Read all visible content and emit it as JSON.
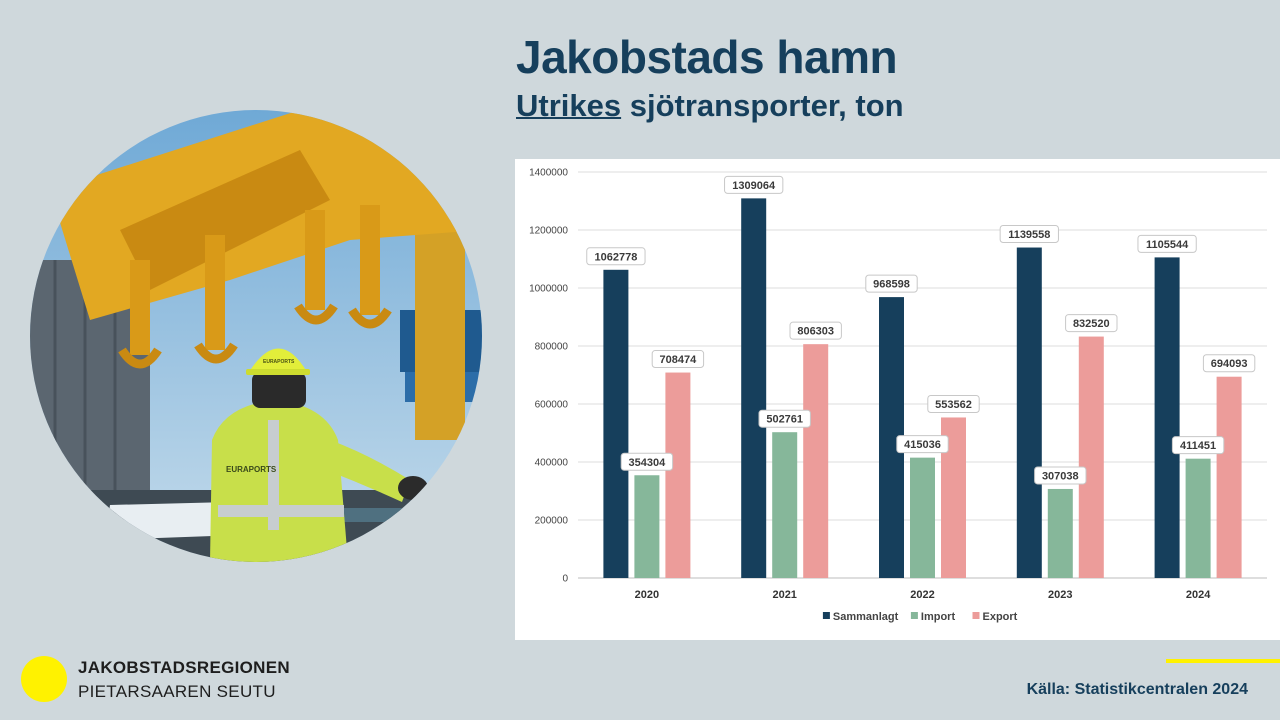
{
  "slide": {
    "title": "Jakobstads hamn",
    "subtitle_underlined": "Utrikes",
    "subtitle_rest": " sjötransporter, ton",
    "source": "Källa: Statistikcentralen 2024"
  },
  "logo": {
    "line1": "JAKOBSTADSREGIONEN",
    "line2": "PIETARSAAREN SEUTU"
  },
  "photo": {
    "helmet_print": "EURAPORTS",
    "vest_print": "EURAPORTS"
  },
  "colors": {
    "background": "#cfd8dc",
    "title": "#163f5c",
    "accent_yellow": "#fff200",
    "series_total": "#163f5c",
    "series_import": "#86b79a",
    "series_export": "#ec9c9a"
  },
  "chart_data": {
    "type": "bar",
    "categories": [
      "2020",
      "2021",
      "2022",
      "2023",
      "2024"
    ],
    "series": [
      {
        "name": "Sammanlagt",
        "values": [
          1062778,
          1309064,
          968598,
          1139558,
          1105544
        ],
        "color": "#163f5c"
      },
      {
        "name": "Import",
        "values": [
          354304,
          502761,
          415036,
          307038,
          411451
        ],
        "color": "#86b79a"
      },
      {
        "name": "Export",
        "values": [
          708474,
          806303,
          553562,
          832520,
          694093
        ],
        "color": "#ec9c9a"
      }
    ],
    "yticks": [
      "0",
      "200000",
      "400000",
      "600000",
      "800000",
      "1000000",
      "1200000",
      "1400000"
    ],
    "ylim": [
      0,
      1400000
    ],
    "grid": true,
    "legend": "bottom",
    "data_labels": true
  }
}
